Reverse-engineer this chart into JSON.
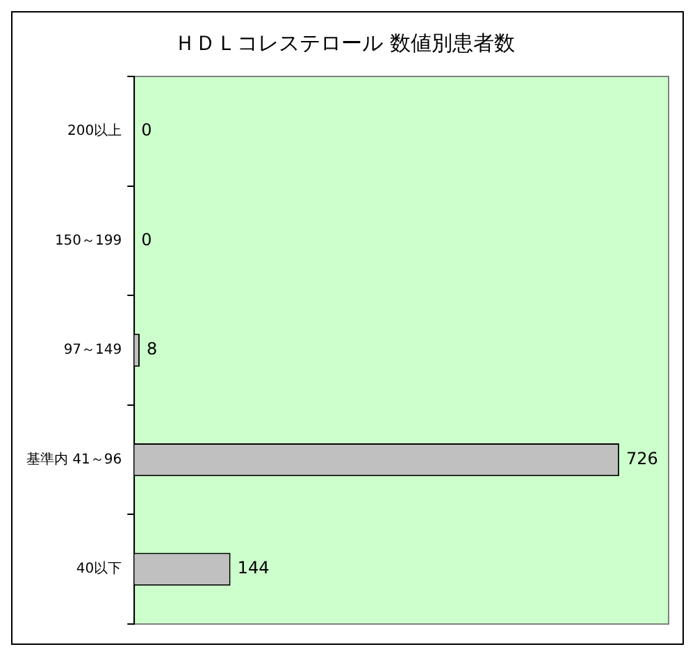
{
  "chart_data": {
    "type": "bar",
    "orientation": "horizontal",
    "title": "ＨＤＬコレステロール 数値別患者数",
    "categories": [
      "200以上",
      "150～199",
      "97～149",
      "基準内 41～96",
      "40以下"
    ],
    "values": [
      0,
      0,
      8,
      726,
      144
    ],
    "color": "#c0c0c0",
    "data_labels": true,
    "tick_labels": "y",
    "grid": false,
    "legend": false
  }
}
